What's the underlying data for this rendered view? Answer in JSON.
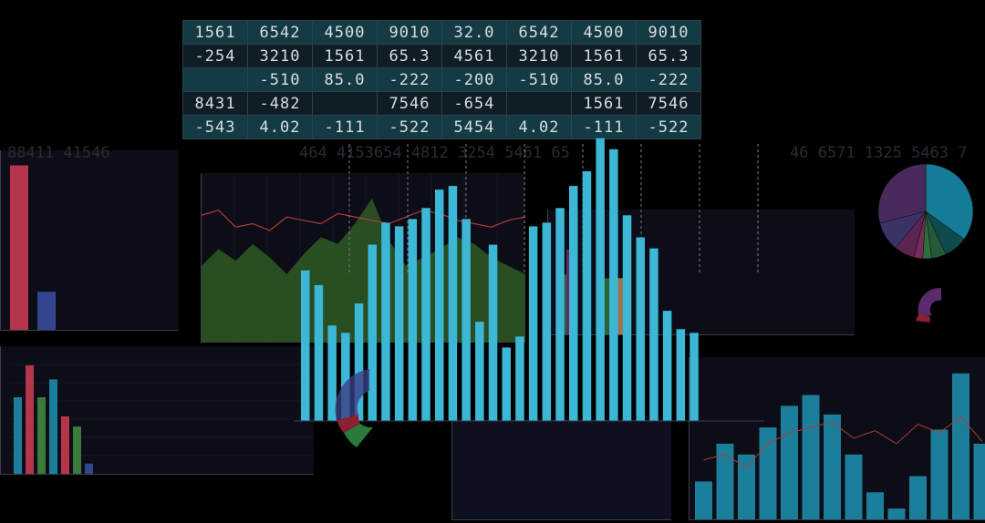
{
  "table": {
    "rows": [
      [
        "1561",
        "6542",
        "4500",
        "9010",
        "32.0",
        "6542",
        "4500",
        "9010"
      ],
      [
        "-254",
        "3210",
        "1561",
        "65.3",
        "4561",
        "3210",
        "1561",
        "65.3"
      ],
      [
        "",
        "-510",
        "85.0",
        "-222",
        "-200",
        "-510",
        "85.0",
        "-222"
      ],
      [
        "8431",
        "-482",
        "",
        "7546",
        "-654",
        "",
        "1561",
        "7546"
      ],
      [
        "-543",
        "4.02",
        "-111",
        "-522",
        "5454",
        "4.02",
        "-111",
        "-522"
      ]
    ]
  },
  "faint_numbers": {
    "left": "88411 41546",
    "center": "464 4153654 4812 3254 5461 65",
    "right": "46 6571 1325 5463 7"
  },
  "colors": {
    "cyan": "#3db7d6",
    "teal": "#1b7f9c",
    "red": "#b5354d",
    "navy": "#35448f",
    "green": "#3b7a3a",
    "purple": "#6b2e6e",
    "orange": "#b08050"
  },
  "chart_data": [
    {
      "type": "bar",
      "name_hint": "main-cyan",
      "values": [
        41,
        37,
        26,
        24,
        32,
        48,
        54,
        53,
        55,
        58,
        63,
        64,
        55,
        27,
        48,
        20,
        23,
        53,
        54,
        58,
        64,
        68,
        77,
        74,
        56,
        50,
        47,
        30,
        25,
        24
      ]
    },
    {
      "type": "area",
      "name_hint": "green-area",
      "values": [
        45,
        55,
        48,
        58,
        50,
        40,
        52,
        62,
        58,
        70,
        85,
        60,
        45,
        50,
        55,
        62,
        58,
        50,
        45,
        40
      ],
      "line": [
        75,
        78,
        68,
        70,
        66,
        74,
        72,
        70,
        76,
        74,
        72,
        70,
        74,
        78,
        76,
        72,
        70,
        68,
        72,
        74
      ]
    },
    {
      "type": "bar",
      "name_hint": "left-top",
      "values": [
        95,
        22
      ],
      "colors": [
        "red",
        "navy"
      ]
    },
    {
      "type": "bar",
      "name_hint": "left-bottom",
      "values": [
        60,
        85,
        60,
        74,
        45,
        37,
        8
      ],
      "colors": [
        "teal",
        "red",
        "green",
        "teal",
        "red",
        "green",
        "navy"
      ]
    },
    {
      "type": "bar",
      "name_hint": "right-bottom",
      "values": [
        35,
        70,
        60,
        85,
        105,
        115,
        97,
        60,
        25,
        10,
        40,
        83,
        135,
        70
      ],
      "line": [
        55,
        60,
        48,
        70,
        80,
        85,
        90,
        75,
        82,
        70,
        88,
        80,
        95,
        72
      ]
    },
    {
      "type": "pie",
      "name_hint": "right-pie",
      "values": [
        35,
        8,
        5,
        3,
        3,
        7,
        10,
        29
      ],
      "colors": [
        "#167b96",
        "#0f4a4f",
        "#25593a",
        "#2d6e3b",
        "#7a2a5a",
        "#5a2550",
        "#3b3366",
        "#4a2a5c"
      ]
    }
  ]
}
